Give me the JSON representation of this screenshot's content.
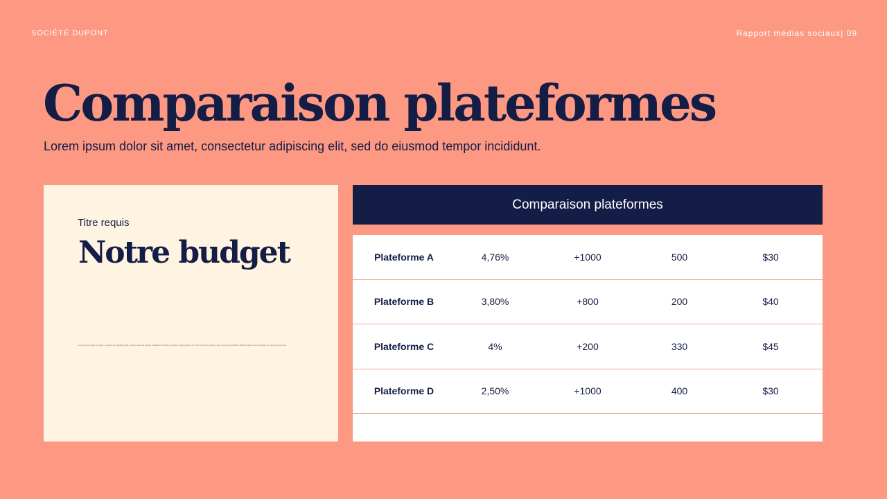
{
  "header": {
    "company": "SOCIÉTÉ DUPONT",
    "report": "Rapport médias sociaux| 09"
  },
  "title": "Comparaison plateformes",
  "subtitle": "Lorem ipsum dolor sit amet, consectetur adipiscing elit, sed do eiusmod tempor incididunt.",
  "card": {
    "label": "Titre requis",
    "heading": "Notre budget",
    "body": "Lorem ipsum dolor sit amet, consectetur adipiscing elit, sed do eiusmod tempor incididunt ut labore et dolore magna aliqua. Ut enim ad minim veniam, quis nostrud exercitation ullamco laboris nisi ut aliquip ex ea commodo consequat. Duis aute irure"
  },
  "table": {
    "title": "Comparaison plateformes",
    "rows": [
      [
        "Plateforme A",
        "4,76%",
        "+1000",
        "500",
        "$30"
      ],
      [
        "Plateforme B",
        "3,80%",
        "+800",
        "200",
        "$40"
      ],
      [
        "Plateforme C",
        "4%",
        "+200",
        "330",
        "$45"
      ],
      [
        "Plateforme D",
        "2,50%",
        "+1000",
        "400",
        "$30"
      ]
    ]
  },
  "colors": {
    "background": "#fd9882",
    "navy": "#141d45",
    "card": "#fff4e1"
  }
}
